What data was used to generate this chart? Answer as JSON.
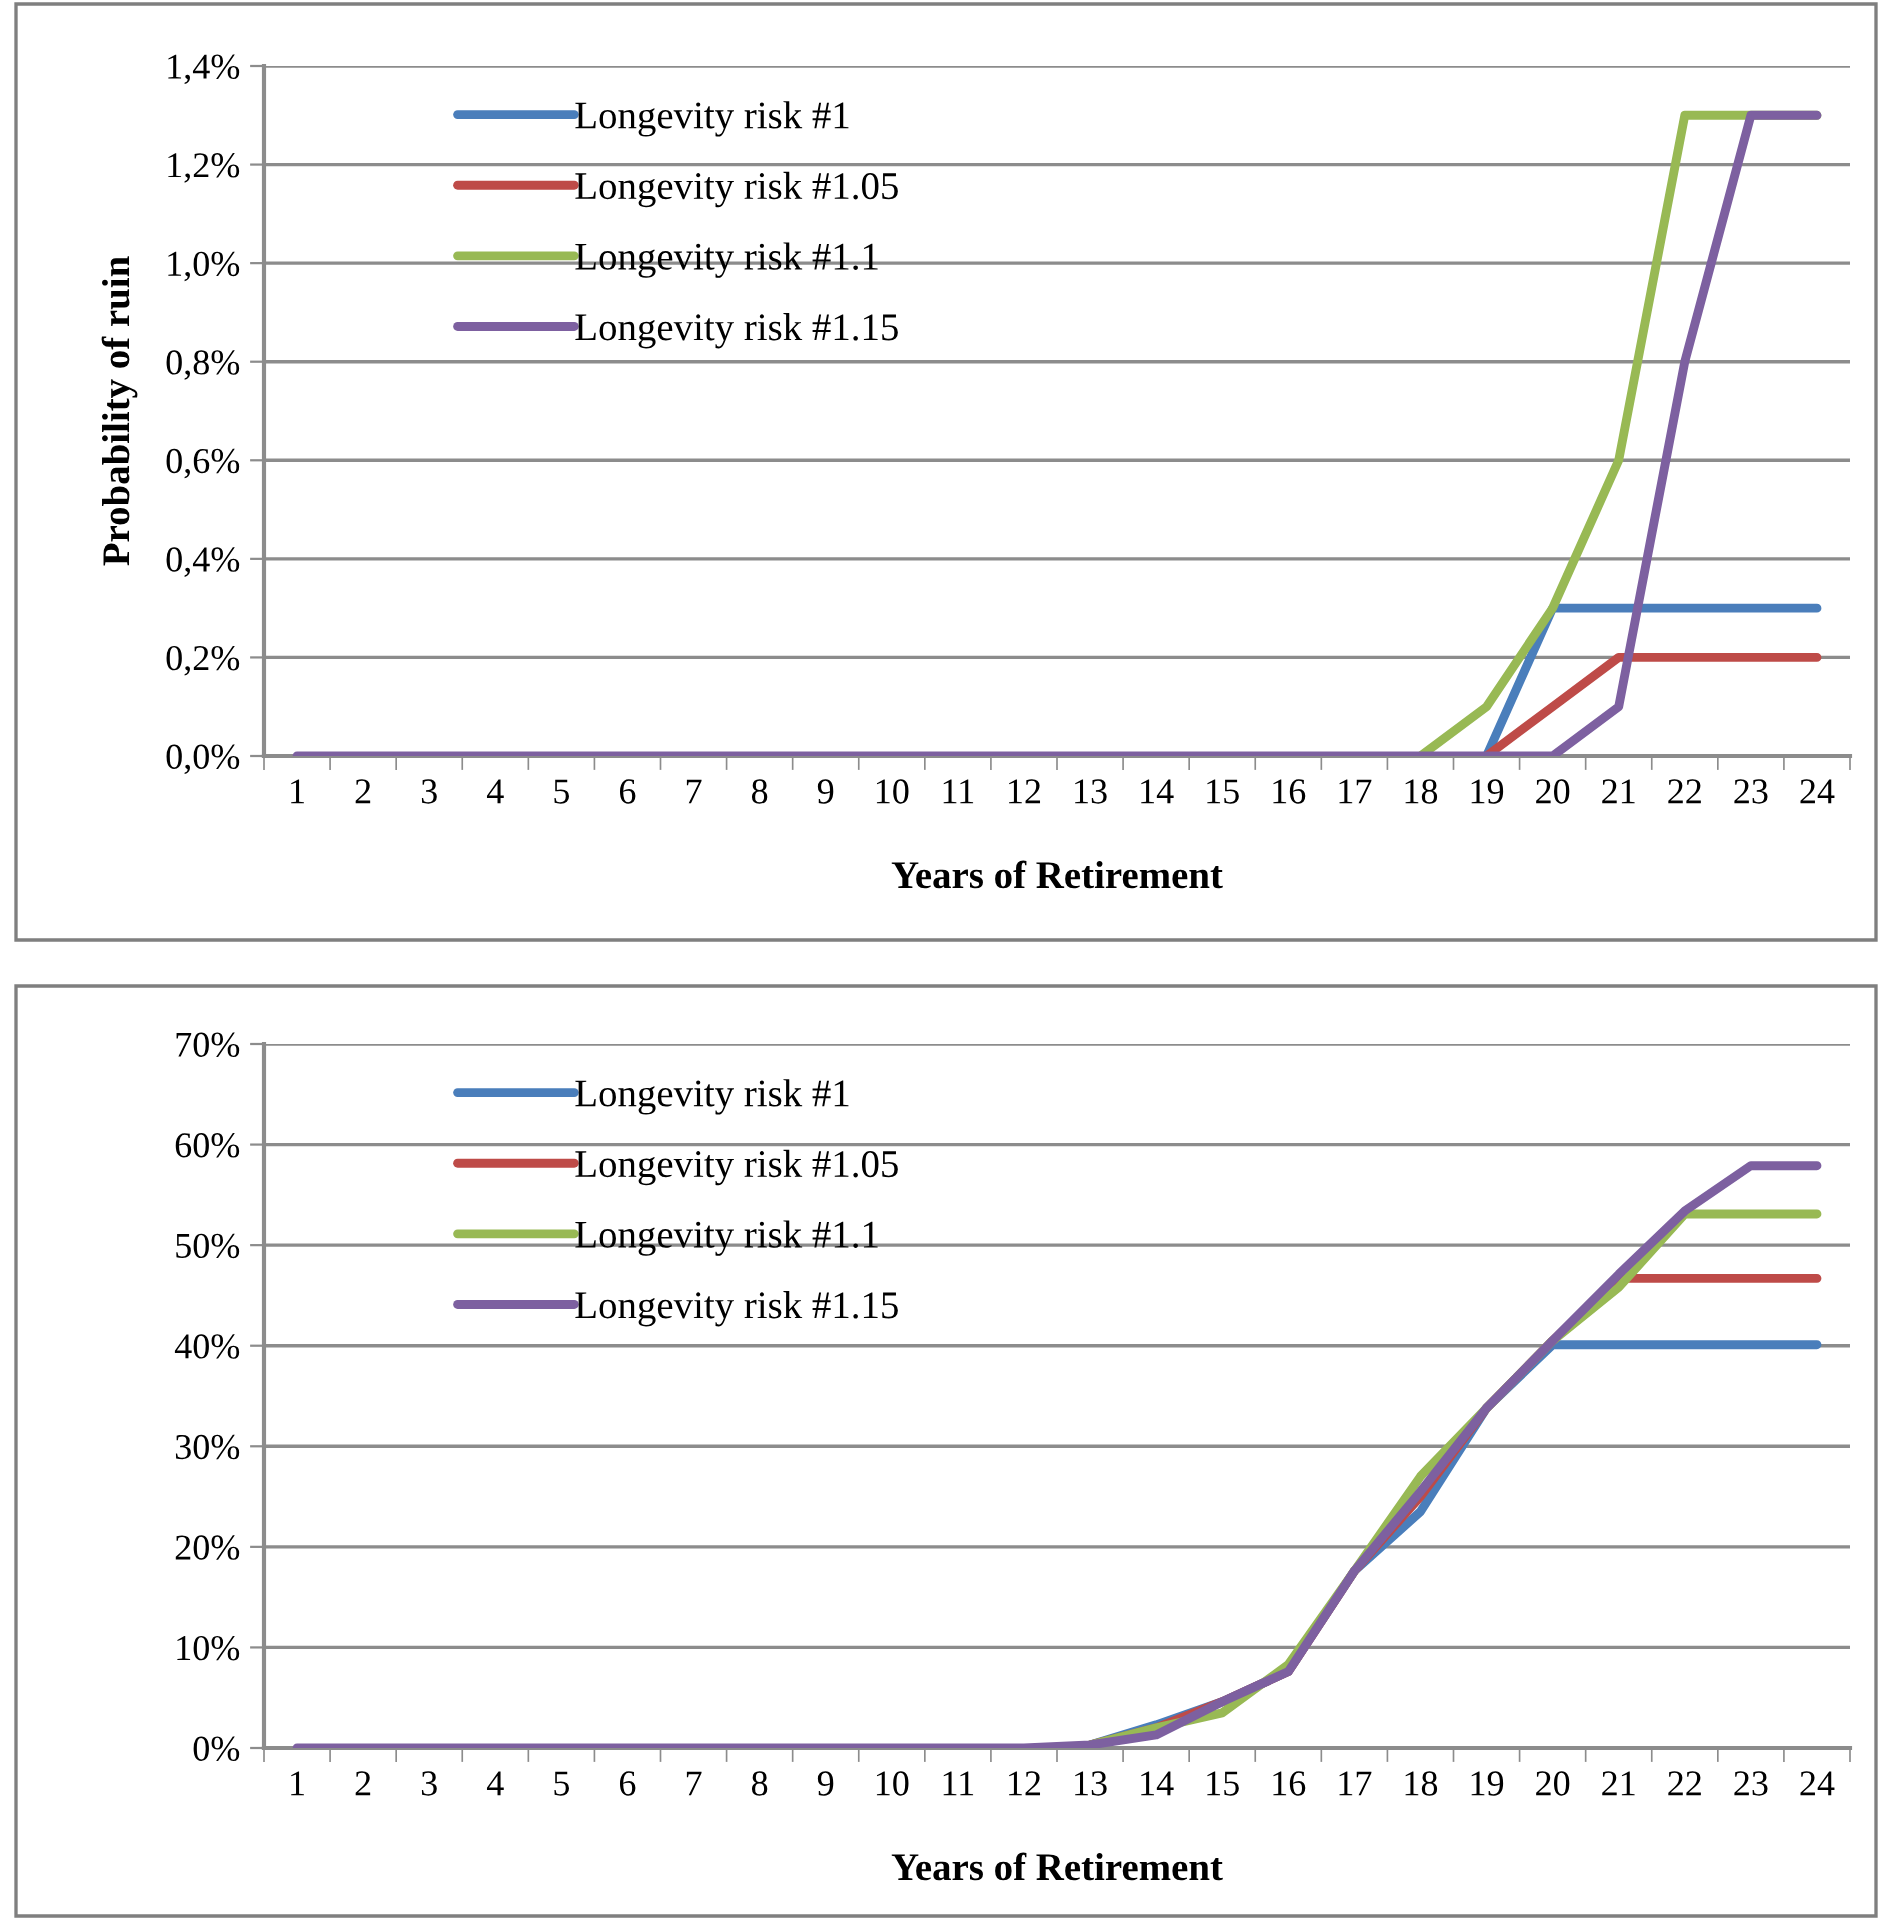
{
  "chart_data": [
    {
      "type": "line",
      "xlabel": "Years of Retirement",
      "ylabel": "Probability of ruin",
      "categories": [
        "1",
        "2",
        "3",
        "4",
        "5",
        "6",
        "7",
        "8",
        "9",
        "10",
        "11",
        "12",
        "13",
        "14",
        "15",
        "16",
        "17",
        "18",
        "19",
        "20",
        "21",
        "22",
        "23",
        "24"
      ],
      "series": [
        {
          "name": "Longevity risk #1",
          "color": "#4a7ebb",
          "values": [
            null,
            null,
            null,
            null,
            null,
            null,
            null,
            null,
            null,
            null,
            null,
            null,
            null,
            null,
            null,
            null,
            null,
            null,
            0,
            0.3,
            0.3,
            0.3,
            0.3,
            0.3
          ]
        },
        {
          "name": "Longevity risk #1.05",
          "color": "#be4b48",
          "values": [
            null,
            null,
            null,
            null,
            null,
            null,
            null,
            null,
            null,
            null,
            null,
            null,
            null,
            null,
            null,
            null,
            null,
            null,
            0,
            0.1,
            0.2,
            0.2,
            0.2,
            0.2
          ]
        },
        {
          "name": "Longevity risk #1.1",
          "color": "#98b954",
          "values": [
            null,
            null,
            null,
            null,
            null,
            null,
            null,
            null,
            null,
            null,
            null,
            null,
            null,
            null,
            null,
            null,
            null,
            0,
            0.1,
            0.3,
            0.6,
            1.3,
            1.3,
            1.3
          ]
        },
        {
          "name": "Longevity risk #1.15",
          "color": "#7d60a0",
          "values": [
            0,
            0,
            0,
            0,
            0,
            0,
            0,
            0,
            0,
            0,
            0,
            0,
            0,
            0,
            0,
            0,
            0,
            0,
            0,
            0,
            0.1,
            0.8,
            1.3,
            1.3
          ]
        }
      ],
      "ylim": [
        0,
        1.4
      ],
      "yticks": [
        {
          "value": 0,
          "label": "0,0%"
        },
        {
          "value": 0.2,
          "label": "0,2%"
        },
        {
          "value": 0.4,
          "label": "0,4%"
        },
        {
          "value": 0.6,
          "label": "0,6%"
        },
        {
          "value": 0.8,
          "label": "0,8%"
        },
        {
          "value": 1.0,
          "label": "1,0%"
        },
        {
          "value": 1.2,
          "label": "1,2%"
        },
        {
          "value": 1.4,
          "label": "1,4%"
        }
      ],
      "grid": "y",
      "legend": "top left",
      "line_style": "solid",
      "marker": "none"
    },
    {
      "type": "line",
      "xlabel": "Years of Retirement",
      "categories": [
        "1",
        "2",
        "3",
        "4",
        "5",
        "6",
        "7",
        "8",
        "9",
        "10",
        "11",
        "12",
        "13",
        "14",
        "15",
        "16",
        "17",
        "18",
        "19",
        "20",
        "21",
        "22",
        "23",
        "24"
      ],
      "series": [
        {
          "name": "Longevity risk #1",
          "color": "#4a7ebb",
          "values": [
            null,
            null,
            null,
            null,
            null,
            null,
            null,
            null,
            null,
            null,
            null,
            null,
            0.3,
            2.3,
            4.6,
            7.6,
            17.6,
            23.5,
            33.8,
            40.1,
            40.1,
            40.1,
            40.1,
            40.1
          ]
        },
        {
          "name": "Longevity risk #1.05",
          "color": "#be4b48",
          "values": [
            null,
            null,
            null,
            null,
            null,
            null,
            null,
            null,
            null,
            null,
            null,
            null,
            0.3,
            2,
            4.6,
            7.6,
            17.6,
            25,
            33.8,
            40.5,
            46.7,
            46.7,
            46.7,
            46.7
          ]
        },
        {
          "name": "Longevity risk #1.1",
          "color": "#98b954",
          "values": [
            null,
            null,
            null,
            null,
            null,
            null,
            null,
            null,
            null,
            null,
            null,
            null,
            0.3,
            2,
            3.5,
            8.3,
            17.6,
            27,
            33.8,
            40.5,
            45.8,
            53.1,
            53.1,
            53.1
          ]
        },
        {
          "name": "Longevity risk #1.15",
          "color": "#7d60a0",
          "values": [
            0,
            0,
            0,
            0,
            0,
            0,
            0,
            0,
            0,
            0,
            0,
            0,
            0.3,
            1.3,
            4.6,
            7.6,
            17.6,
            25.5,
            33.8,
            40.5,
            47.1,
            53.4,
            57.9,
            57.9
          ]
        }
      ],
      "ylim": [
        0,
        70
      ],
      "yticks": [
        {
          "value": 0,
          "label": "0%"
        },
        {
          "value": 10,
          "label": "10%"
        },
        {
          "value": 20,
          "label": "20%"
        },
        {
          "value": 30,
          "label": "30%"
        },
        {
          "value": 40,
          "label": "40%"
        },
        {
          "value": 50,
          "label": "50%"
        },
        {
          "value": 60,
          "label": "60%"
        },
        {
          "value": 70,
          "label": "70%"
        }
      ],
      "grid": "y",
      "legend": "top left",
      "line_style": "solid",
      "marker": "none"
    }
  ]
}
